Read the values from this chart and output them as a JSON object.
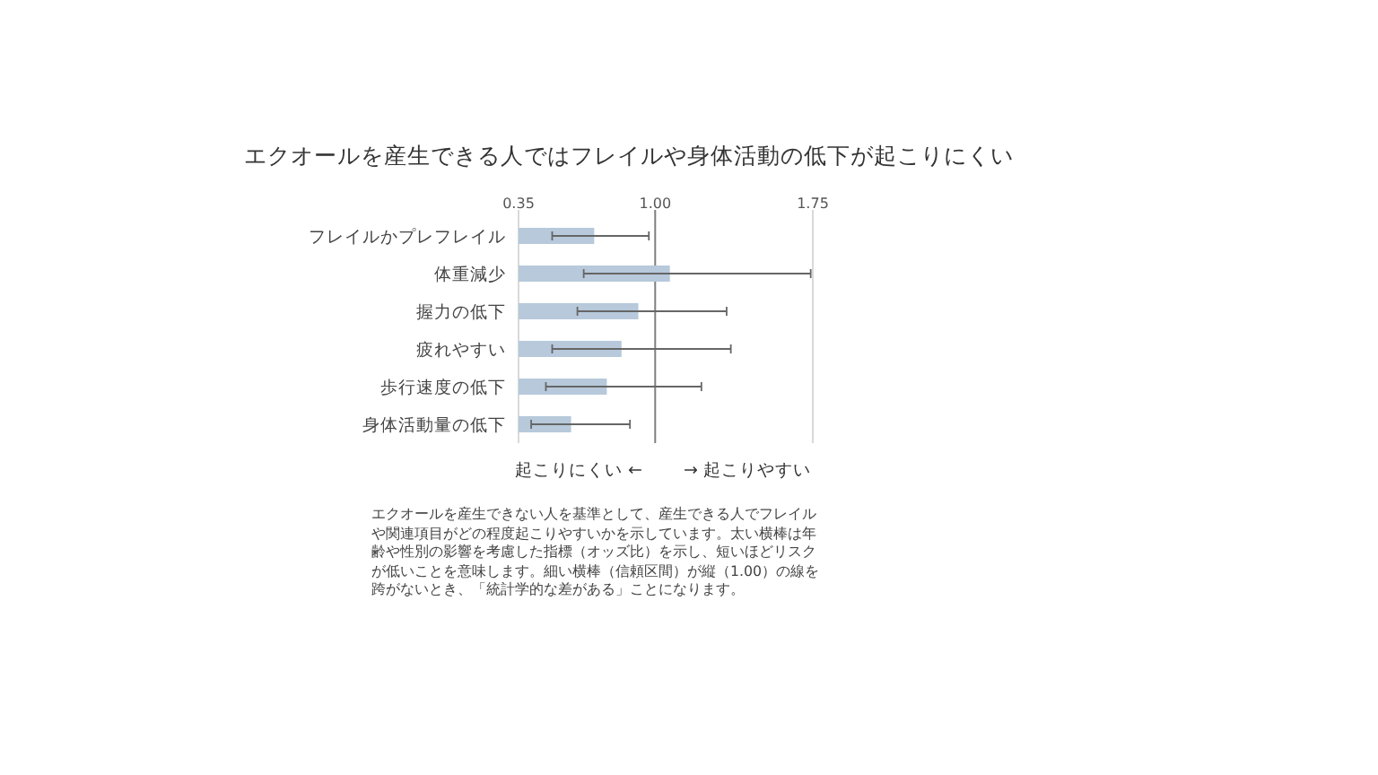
{
  "chart_data": {
    "type": "bar",
    "orientation": "horizontal",
    "title": "エクオールを産生できる人ではフレイルや身体活動の低下が起こりにくい",
    "categories": [
      "フレイルかプレフレイル",
      "体重減少",
      "握力の低下",
      "疲れやすい",
      "歩行速度の低下",
      "身体活動量の低下"
    ],
    "values": [
      0.71,
      1.07,
      0.92,
      0.84,
      0.77,
      0.6
    ],
    "errors": [
      [
        0.51,
        0.97
      ],
      [
        0.66,
        1.74
      ],
      [
        0.63,
        1.34
      ],
      [
        0.51,
        1.36
      ],
      [
        0.48,
        1.22
      ],
      [
        0.41,
        0.88
      ]
    ],
    "color": "#b7c9db",
    "xlim": [
      0.35,
      1.75
    ],
    "xticks": [
      {
        "value": 0.35,
        "label": "0.35"
      },
      {
        "value": 1.0,
        "label": "1.00"
      },
      {
        "value": 1.75,
        "label": "1.75"
      }
    ],
    "ref_lines": [
      {
        "axis": "x",
        "value": 1.0,
        "color": "#7f7f7f"
      },
      {
        "axis": "x",
        "value": 1.75,
        "color": "#d9d9d9"
      }
    ],
    "annotations": [
      "起こりにくい ←",
      "→ 起こりやすい",
      "エクオールを産生できない人を基準として、産生できる人でフレイルや関連項目がどの程度起こりやすいかを示しています。太い横棒は年齢や性別の影響を考慮した指標（オッズ比）を示し、短いほどリスクが低いことを意味します。細い横棒（信頼区間）が縦（1.00）の線を跨がないとき、「統計学的な差がある」ことになります。"
    ]
  }
}
